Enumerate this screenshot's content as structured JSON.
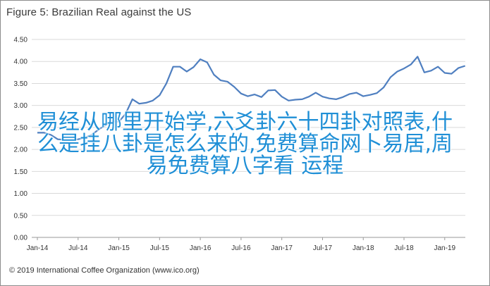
{
  "chart_data": {
    "type": "line",
    "title": "Figure 5: Brazilian Real against the US",
    "xlabel": "",
    "ylabel": "",
    "ylim": [
      0.0,
      4.5
    ],
    "yticks": [
      "0.00",
      "0.50",
      "1.00",
      "1.50",
      "2.00",
      "2.50",
      "3.00",
      "3.50",
      "4.00",
      "4.50"
    ],
    "xticks": [
      "Jan-14",
      "Jul-14",
      "Jan-15",
      "Jul-15",
      "Jan-16",
      "Jul-16",
      "Jan-17",
      "Jul-17",
      "Jan-18",
      "Jul-18",
      "Jan-19"
    ],
    "grid": "horizontal",
    "legend": "none",
    "line_color": "#4f7fc0",
    "series": [
      {
        "x": [
          "2014-01",
          "2014-02",
          "2014-03",
          "2014-04",
          "2014-05",
          "2014-06",
          "2014-07",
          "2014-08",
          "2014-09",
          "2014-10",
          "2014-11",
          "2014-12",
          "2015-01",
          "2015-02",
          "2015-03",
          "2015-04",
          "2015-05",
          "2015-06",
          "2015-07",
          "2015-08",
          "2015-09",
          "2015-10",
          "2015-11",
          "2015-12",
          "2016-01",
          "2016-02",
          "2016-03",
          "2016-04",
          "2016-05",
          "2016-06",
          "2016-07",
          "2016-08",
          "2016-09",
          "2016-10",
          "2016-11",
          "2016-12",
          "2017-01",
          "2017-02",
          "2017-03",
          "2017-04",
          "2017-05",
          "2017-06",
          "2017-07",
          "2017-08",
          "2017-09",
          "2017-10",
          "2017-11",
          "2017-12",
          "2018-01",
          "2018-02",
          "2018-03",
          "2018-04",
          "2018-05",
          "2018-06",
          "2018-07",
          "2018-08",
          "2018-09",
          "2018-10",
          "2018-11",
          "2018-12",
          "2019-01",
          "2019-02",
          "2019-03",
          "2019-04"
        ],
        "values": [
          2.38,
          2.38,
          2.33,
          2.23,
          2.22,
          2.22,
          2.23,
          2.27,
          2.33,
          2.45,
          2.55,
          2.64,
          2.63,
          2.81,
          3.14,
          3.04,
          3.06,
          3.11,
          3.23,
          3.5,
          3.88,
          3.88,
          3.77,
          3.87,
          4.05,
          3.98,
          3.7,
          3.57,
          3.54,
          3.42,
          3.27,
          3.21,
          3.25,
          3.19,
          3.34,
          3.35,
          3.2,
          3.11,
          3.13,
          3.14,
          3.2,
          3.29,
          3.2,
          3.16,
          3.14,
          3.19,
          3.26,
          3.29,
          3.21,
          3.24,
          3.28,
          3.41,
          3.64,
          3.77,
          3.84,
          3.93,
          4.11,
          3.75,
          3.79,
          3.88,
          3.74,
          3.72,
          3.85,
          3.9
        ]
      }
    ]
  },
  "footer": {
    "copyright": "© 2019 International Coffee Organization (www.ico.org)"
  },
  "overlay": {
    "lines": [
      "易经从哪里开始学,六爻卦六十四卦对照表,什",
      "么是挂八卦是怎么来的,免费算命网卜易居,周",
      "易免费算八字看 运程"
    ]
  }
}
